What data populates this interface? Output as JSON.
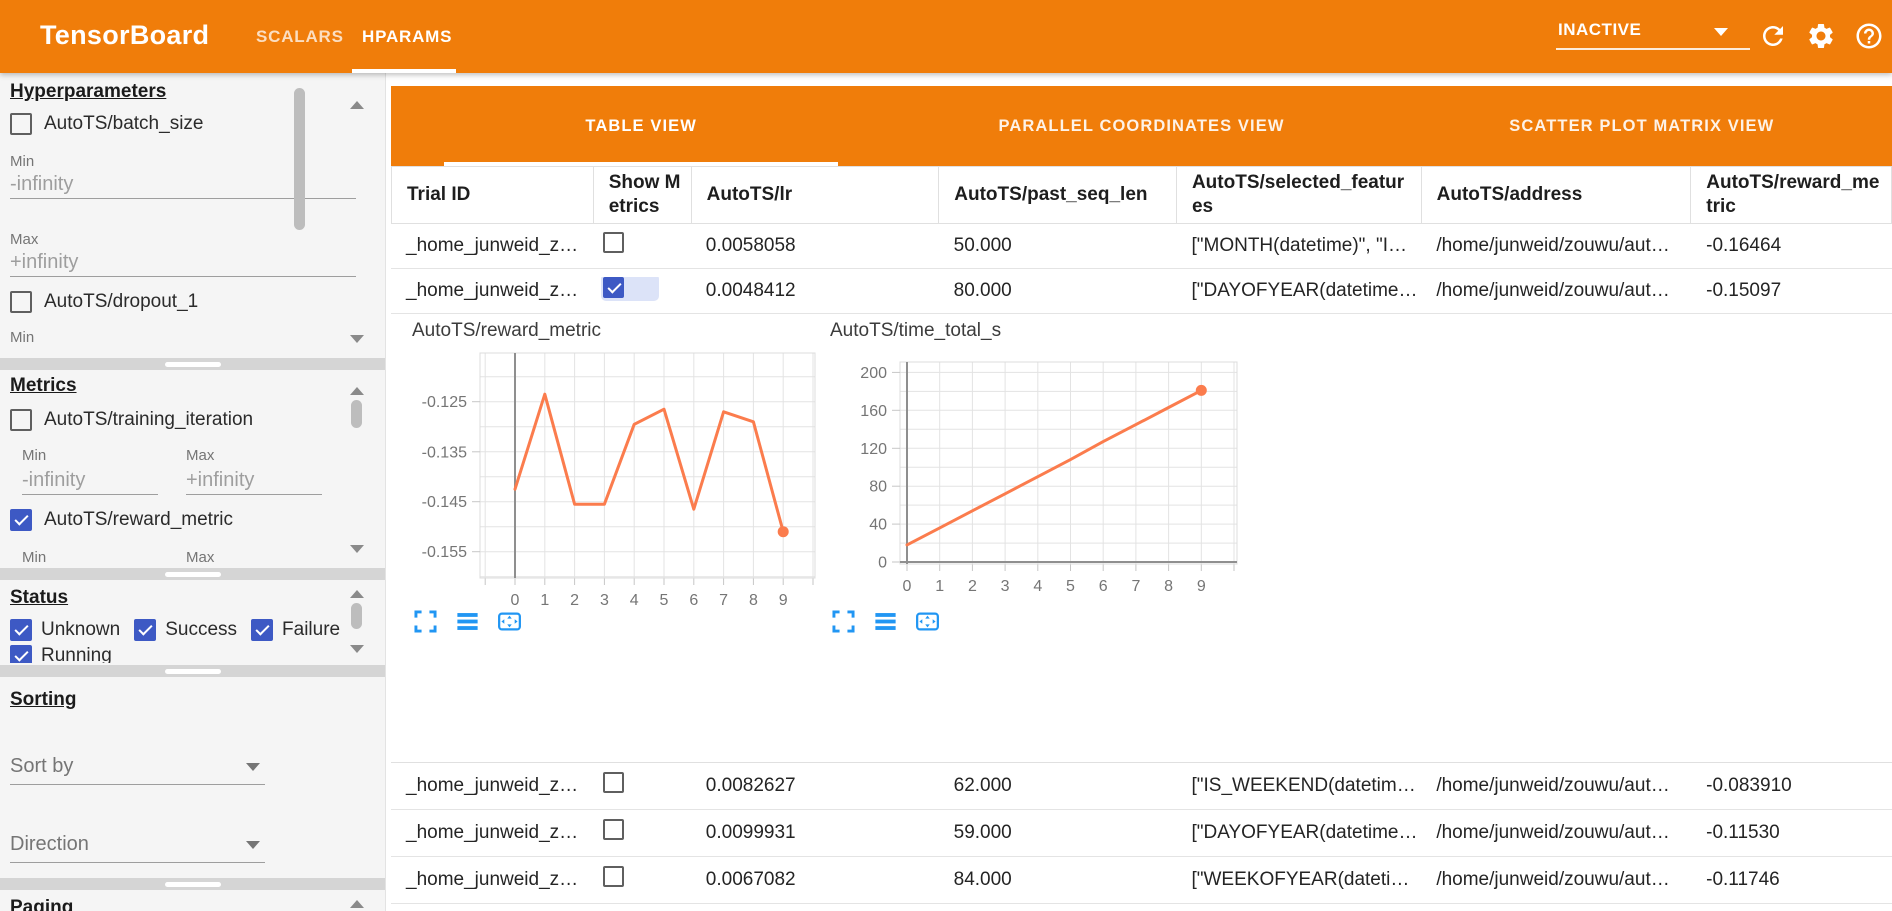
{
  "topbar": {
    "logo": "TensorBoard",
    "nav_tabs": [
      {
        "label": "SCALARS",
        "active": false
      },
      {
        "label": "HPARAMS",
        "active": true
      }
    ],
    "run_status": "INACTIVE",
    "icons": [
      "refresh-icon",
      "settings-gear-icon",
      "help-icon"
    ]
  },
  "sidebar": {
    "hp": {
      "heading": "Hyperparameters",
      "item1_label": "AutoTS/batch_size",
      "min_label": "Min",
      "min_value": "-infinity",
      "max_label": "Max",
      "max_value": "+infinity",
      "item2_label": "AutoTS/dropout_1",
      "item2_min_label": "Min"
    },
    "metrics": {
      "heading": "Metrics",
      "item1_label": "AutoTS/training_iteration",
      "min_label": "Min",
      "max_label": "Max",
      "min_value": "-infinity",
      "max_value": "+infinity",
      "item2_label": "AutoTS/reward_metric",
      "item2_min_label": "Min",
      "item2_max_label": "Max"
    },
    "status": {
      "heading": "Status",
      "options": [
        {
          "label": "Unknown",
          "checked": true
        },
        {
          "label": "Success",
          "checked": true
        },
        {
          "label": "Failure",
          "checked": true
        },
        {
          "label": "Running",
          "checked": true
        }
      ]
    },
    "sorting": {
      "heading": "Sorting",
      "sort_by_placeholder": "Sort by",
      "direction_placeholder": "Direction"
    },
    "paging": {
      "heading": "Paging"
    }
  },
  "view_tabs": [
    {
      "label": "TABLE VIEW",
      "active": true
    },
    {
      "label": "PARALLEL COORDINATES VIEW",
      "active": false
    },
    {
      "label": "SCATTER PLOT MATRIX VIEW",
      "active": false
    }
  ],
  "table": {
    "columns": [
      "Trial ID",
      "Show Metrics",
      "AutoTS/lr",
      "AutoTS/past_seq_len",
      "AutoTS/selected_features",
      "AutoTS/address",
      "AutoTS/reward_metric"
    ],
    "rows": [
      {
        "trial_id": "_home_junweid_z…",
        "show_metrics": false,
        "lr": "0.0058058",
        "past_seq_len": "50.000",
        "selected_features": "[\"MONTH(datetime)\", \"I…",
        "address": "/home/junweid/zouwu/aut…",
        "reward_metric": "-0.16464"
      },
      {
        "trial_id": "_home_junweid_z…",
        "show_metrics": true,
        "lr": "0.0048412",
        "past_seq_len": "80.000",
        "selected_features": "[\"DAYOFYEAR(datetime…",
        "address": "/home/junweid/zouwu/aut…",
        "reward_metric": "-0.15097"
      },
      {
        "trial_id": "_home_junweid_z…",
        "show_metrics": false,
        "lr": "0.0082627",
        "past_seq_len": "62.000",
        "selected_features": "[\"IS_WEEKEND(datetim…",
        "address": "/home/junweid/zouwu/aut…",
        "reward_metric": "-0.083910"
      },
      {
        "trial_id": "_home_junweid_z…",
        "show_metrics": false,
        "lr": "0.0099931",
        "past_seq_len": "59.000",
        "selected_features": "[\"DAYOFYEAR(datetime…",
        "address": "/home/junweid/zouwu/aut…",
        "reward_metric": "-0.11530"
      },
      {
        "trial_id": "_home_junweid_z…",
        "show_metrics": false,
        "lr": "0.0067082",
        "past_seq_len": "84.000",
        "selected_features": "[\"WEEKOFYEAR(dateti…",
        "address": "/home/junweid/zouwu/aut…",
        "reward_metric": "-0.11746"
      }
    ]
  },
  "chart_toolbar_icons": [
    "maximize-icon",
    "view-list-icon",
    "fit-to-frame-icon"
  ],
  "chart_data": [
    {
      "type": "line",
      "title": "AutoTS/reward_metric",
      "x": [
        0,
        1,
        2,
        3,
        4,
        5,
        6,
        7,
        8,
        9
      ],
      "values": [
        -0.1425,
        -0.1235,
        -0.1455,
        -0.1455,
        -0.1295,
        -0.1265,
        -0.1465,
        -0.127,
        -0.129,
        -0.151
      ],
      "xticks": [
        "0",
        "1",
        "2",
        "3",
        "4",
        "5",
        "6",
        "7",
        "8",
        "9"
      ],
      "yticks": [
        {
          "v": -0.125,
          "label": "-0.125"
        },
        {
          "v": -0.135,
          "label": "-0.135"
        },
        {
          "v": -0.145,
          "label": "-0.145"
        },
        {
          "v": -0.155,
          "label": "-0.155"
        }
      ],
      "ylim": [
        -0.16025,
        -0.11525
      ],
      "grid_step": 0.005,
      "grid": true,
      "legend": false,
      "line_color": "#FB7C4D",
      "end_dot": true,
      "zero_axis": false
    },
    {
      "type": "line",
      "title": "AutoTS/time_total_s",
      "x": [
        0,
        1,
        2,
        3,
        4,
        5,
        6,
        7,
        8,
        9
      ],
      "values": [
        18,
        36,
        54,
        72,
        90,
        108,
        127,
        145,
        163,
        181
      ],
      "xticks": [
        "0",
        "1",
        "2",
        "3",
        "4",
        "5",
        "6",
        "7",
        "8",
        "9"
      ],
      "yticks": [
        {
          "v": 0,
          "label": "0"
        },
        {
          "v": 40,
          "label": "40"
        },
        {
          "v": 80,
          "label": "80"
        },
        {
          "v": 120,
          "label": "120"
        },
        {
          "v": 160,
          "label": "160"
        },
        {
          "v": 200,
          "label": "200"
        }
      ],
      "ylim": [
        -2.1,
        211
      ],
      "grid_step": 20,
      "grid": true,
      "legend": false,
      "line_color": "#FB7C4D",
      "end_dot": true,
      "zero_axis": true
    }
  ]
}
